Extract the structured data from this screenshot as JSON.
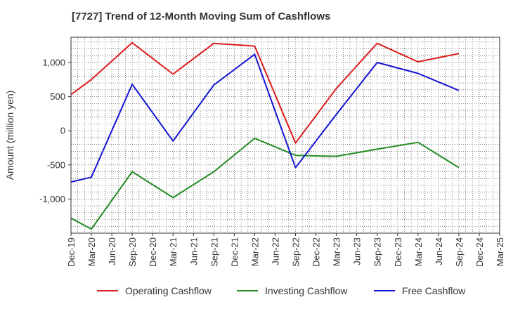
{
  "chart_data": {
    "type": "line",
    "title": "[7727]  Trend of 12-Month Moving Sum of Cashflows",
    "ylabel": "Amount (million yen)",
    "xlabel": "",
    "ylim": [
      -1500,
      1370
    ],
    "yticks": [
      {
        "value": 1000,
        "label": "1,000"
      },
      {
        "value": 500,
        "label": "500"
      },
      {
        "value": 0,
        "label": "0"
      },
      {
        "value": -500,
        "label": "-500"
      },
      {
        "value": -1000,
        "label": "-1,000"
      }
    ],
    "categories": [
      "Dec-19",
      "Mar-20",
      "Jun-20",
      "Sep-20",
      "Dec-20",
      "Mar-21",
      "Jun-21",
      "Sep-21",
      "Dec-21",
      "Mar-22",
      "Jun-22",
      "Sep-22",
      "Dec-22",
      "Mar-23",
      "Jun-23",
      "Sep-23",
      "Dec-23",
      "Mar-24",
      "Jun-24",
      "Sep-24",
      "Dec-24",
      "Mar-25"
    ],
    "grid": true,
    "legend_position": "bottom",
    "series": [
      {
        "name": "Operating Cashflow",
        "color": "#dd1c1c",
        "points": [
          {
            "x": "Dec-19",
            "y": 530
          },
          {
            "x": "Mar-20",
            "y": 750
          },
          {
            "x": "Sep-20",
            "y": 1290
          },
          {
            "x": "Mar-21",
            "y": 830
          },
          {
            "x": "Sep-21",
            "y": 1280
          },
          {
            "x": "Mar-22",
            "y": 1240
          },
          {
            "x": "Sep-22",
            "y": -180
          },
          {
            "x": "Mar-23",
            "y": 620
          },
          {
            "x": "Sep-23",
            "y": 1280
          },
          {
            "x": "Mar-24",
            "y": 1010
          },
          {
            "x": "Sep-24",
            "y": 1130
          }
        ]
      },
      {
        "name": "Investing Cashflow",
        "color": "#228b22",
        "points": [
          {
            "x": "Dec-19",
            "y": -1280
          },
          {
            "x": "Mar-20",
            "y": -1440
          },
          {
            "x": "Sep-20",
            "y": -600
          },
          {
            "x": "Mar-21",
            "y": -980
          },
          {
            "x": "Sep-21",
            "y": -600
          },
          {
            "x": "Mar-22",
            "y": -110
          },
          {
            "x": "Sep-22",
            "y": -360
          },
          {
            "x": "Mar-23",
            "y": -375
          },
          {
            "x": "Sep-23",
            "y": -270
          },
          {
            "x": "Mar-24",
            "y": -170
          },
          {
            "x": "Sep-24",
            "y": -540
          }
        ]
      },
      {
        "name": "Free Cashflow",
        "color": "#1414d4",
        "points": [
          {
            "x": "Dec-19",
            "y": -750
          },
          {
            "x": "Mar-20",
            "y": -680
          },
          {
            "x": "Sep-20",
            "y": 680
          },
          {
            "x": "Mar-21",
            "y": -150
          },
          {
            "x": "Sep-21",
            "y": 670
          },
          {
            "x": "Mar-22",
            "y": 1120
          },
          {
            "x": "Sep-22",
            "y": -540
          },
          {
            "x": "Mar-23",
            "y": 240
          },
          {
            "x": "Sep-23",
            "y": 1000
          },
          {
            "x": "Mar-24",
            "y": 840
          },
          {
            "x": "Sep-24",
            "y": 590
          }
        ]
      }
    ]
  }
}
